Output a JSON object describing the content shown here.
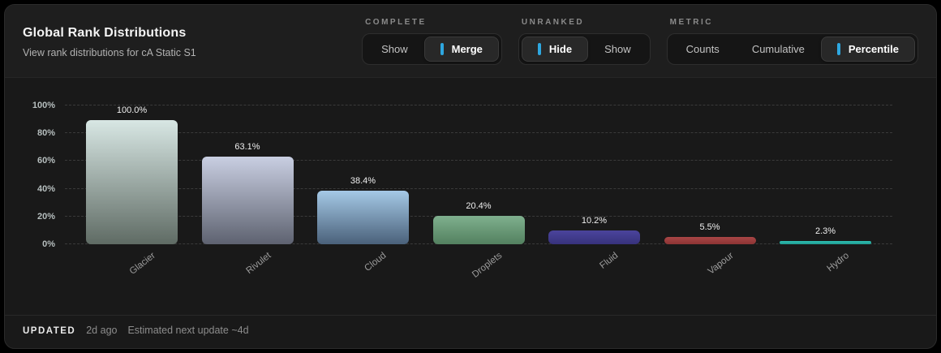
{
  "header": {
    "title": "Global Rank Distributions",
    "subtitle": "View rank distributions for cA Static S1"
  },
  "controls": {
    "accent_color": "#2ea7e0",
    "groups": [
      {
        "id": "complete",
        "label": "COMPLETE",
        "options": [
          {
            "label": "Show",
            "selected": false
          },
          {
            "label": "Merge",
            "selected": true
          }
        ]
      },
      {
        "id": "unranked",
        "label": "UNRANKED",
        "options": [
          {
            "label": "Hide",
            "selected": true
          },
          {
            "label": "Show",
            "selected": false
          }
        ]
      },
      {
        "id": "metric",
        "label": "METRIC",
        "options": [
          {
            "label": "Counts",
            "selected": false
          },
          {
            "label": "Cumulative",
            "selected": false
          },
          {
            "label": "Percentile",
            "selected": true
          }
        ]
      }
    ]
  },
  "chart_data": {
    "type": "bar",
    "title": "Global Rank Distributions",
    "xlabel": "",
    "ylabel": "",
    "categories": [
      "Glacier",
      "Rivulet",
      "Cloud",
      "Droplets",
      "Fluid",
      "Vapour",
      "Hydro"
    ],
    "values": [
      100.0,
      63.1,
      38.4,
      20.4,
      10.2,
      5.5,
      2.3
    ],
    "value_labels": [
      "100.0%",
      "63.1%",
      "38.4%",
      "20.4%",
      "10.2%",
      "5.5%",
      "2.3%"
    ],
    "yticks": [
      "0%",
      "20%",
      "40%",
      "60%",
      "80%",
      "100%"
    ],
    "ylim": [
      0,
      100
    ],
    "grid": "horizontal-dashed",
    "legend": "none",
    "bar_colors": [
      {
        "top": "#d8e7e4",
        "bottom": "#5f6b64"
      },
      {
        "top": "#c9cfe2",
        "bottom": "#5e6270"
      },
      {
        "top": "#a5c9e6",
        "bottom": "#4a617a"
      },
      {
        "top": "#7fb08e",
        "bottom": "#53805f"
      },
      {
        "top": "#4b449c",
        "bottom": "#37327c"
      },
      {
        "top": "#a94646",
        "bottom": "#8c3434"
      },
      {
        "top": "#2fc0b4",
        "bottom": "#1f9a90"
      }
    ]
  },
  "footer": {
    "updated_label": "UPDATED",
    "updated_time": "2d ago",
    "next_update": "Estimated next update ~4d"
  }
}
